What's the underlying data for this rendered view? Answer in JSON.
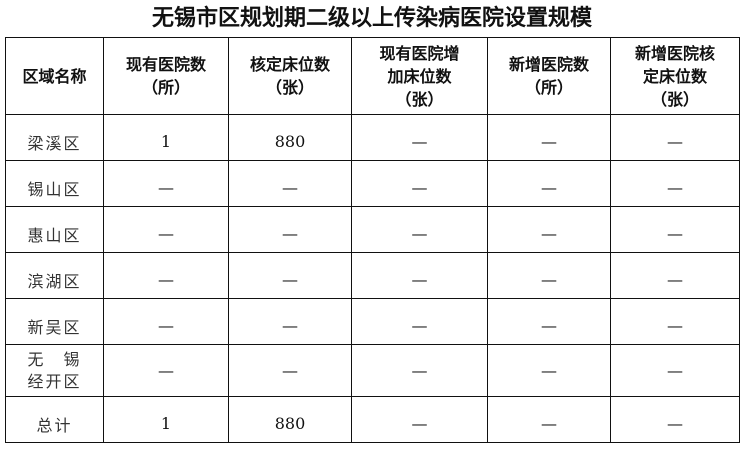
{
  "title": "无锡市区规划期二级以上传染病医院设置规模",
  "headers": [
    [
      "区域名称"
    ],
    [
      "现有医院数",
      "（所）"
    ],
    [
      "核定床位数",
      "（张）"
    ],
    [
      "现有医院增",
      "加床位数",
      "（张）"
    ],
    [
      "新增医院数",
      "（所）"
    ],
    [
      "新增医院核",
      "定床位数",
      "（张）"
    ]
  ],
  "rows": [
    {
      "name": "梁溪区",
      "values": [
        "1",
        "880",
        "—",
        "—",
        "—"
      ]
    },
    {
      "name": "锡山区",
      "values": [
        "—",
        "—",
        "—",
        "—",
        "—"
      ]
    },
    {
      "name": "惠山区",
      "values": [
        "—",
        "—",
        "—",
        "—",
        "—"
      ]
    },
    {
      "name": "滨湖区",
      "values": [
        "—",
        "—",
        "—",
        "—",
        "—"
      ]
    },
    {
      "name": "新吴区",
      "values": [
        "—",
        "—",
        "—",
        "—",
        "—"
      ]
    },
    {
      "name_lines": [
        "无　锡",
        "经开区"
      ],
      "values": [
        "—",
        "—",
        "—",
        "—",
        "—"
      ]
    },
    {
      "name": "总计",
      "values": [
        "1",
        "880",
        "—",
        "—",
        "—"
      ]
    }
  ]
}
